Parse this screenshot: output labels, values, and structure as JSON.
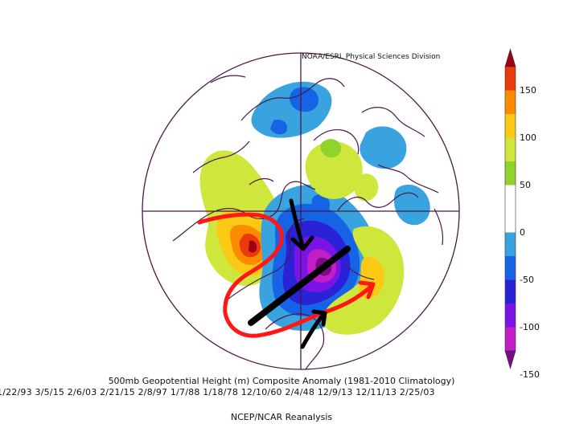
{
  "credit": "NOAA/ESRL Physical Sciences Division",
  "title": "500mb Geopotential Height (m) Composite Anomaly (1981-2010 Climatology)",
  "dates": "1/22/93 3/5/15 2/6/03 2/21/15 2/8/97 1/7/88 1/18/78 12/10/60 2/4/48 12/9/13 12/11/13 2/25/03",
  "source": "NCEP/NCAR Reanalysis",
  "colorbar": {
    "ticks": [
      "150",
      "100",
      "50",
      "0",
      "-50",
      "-100",
      "-150"
    ],
    "colors": [
      "#a00016",
      "#e83a0d",
      "#fb8c00",
      "#fac913",
      "#cfe63c",
      "#90d32c",
      "#ffffff",
      "#ffffff",
      "#38a3de",
      "#1663e6",
      "#2a22d6",
      "#7a13e5",
      "#c11ec6",
      "#7c0985"
    ],
    "units": "m"
  },
  "map": {
    "projection": "north-polar-stereographic",
    "colors": {
      "coast": "#4a1848",
      "grid": "#4a1848",
      "annotation_red": "#ff1616",
      "annotation_black": "#000000"
    }
  }
}
